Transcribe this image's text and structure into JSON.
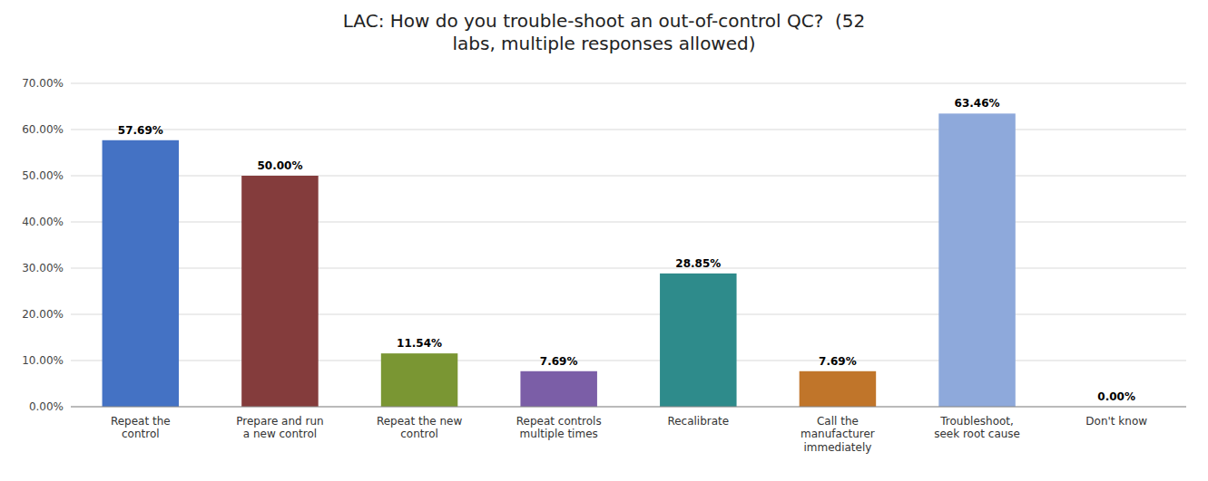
{
  "chart_data": {
    "type": "bar",
    "title": "LAC: How do you trouble-shoot an out-of-control QC?  (52\nlabs, multiple responses allowed)",
    "categories": [
      "Repeat the\ncontrol",
      "Prepare and run\na new control",
      "Repeat the new\ncontrol",
      "Repeat controls\nmultiple times",
      "Recalibrate",
      "Call the\nmanufacturer\nimmediately",
      "Troubleshoot,\nseek root cause",
      "Don't know"
    ],
    "values": [
      57.69,
      50.0,
      11.54,
      7.69,
      28.85,
      7.69,
      63.46,
      0.0
    ],
    "value_labels": [
      "57.69%",
      "50.00%",
      "11.54%",
      "7.69%",
      "28.85%",
      "7.69%",
      "63.46%",
      "0.00%"
    ],
    "colors": [
      "#4472C4",
      "#843C3C",
      "#7A9633",
      "#7B5EA7",
      "#2E8B8B",
      "#C0752A",
      "#8EA9DB",
      "#AAAAAA"
    ],
    "ylim": [
      0,
      70
    ],
    "yticks": [
      {
        "value": 0,
        "label": "0.00%"
      },
      {
        "value": 10,
        "label": "10.00%"
      },
      {
        "value": 20,
        "label": "20.00%"
      },
      {
        "value": 30,
        "label": "30.00%"
      },
      {
        "value": 40,
        "label": "40.00%"
      },
      {
        "value": 50,
        "label": "50.00%"
      },
      {
        "value": 60,
        "label": "60.00%"
      },
      {
        "value": 70,
        "label": "70.00%"
      }
    ],
    "grid": true,
    "data_labels": true
  }
}
